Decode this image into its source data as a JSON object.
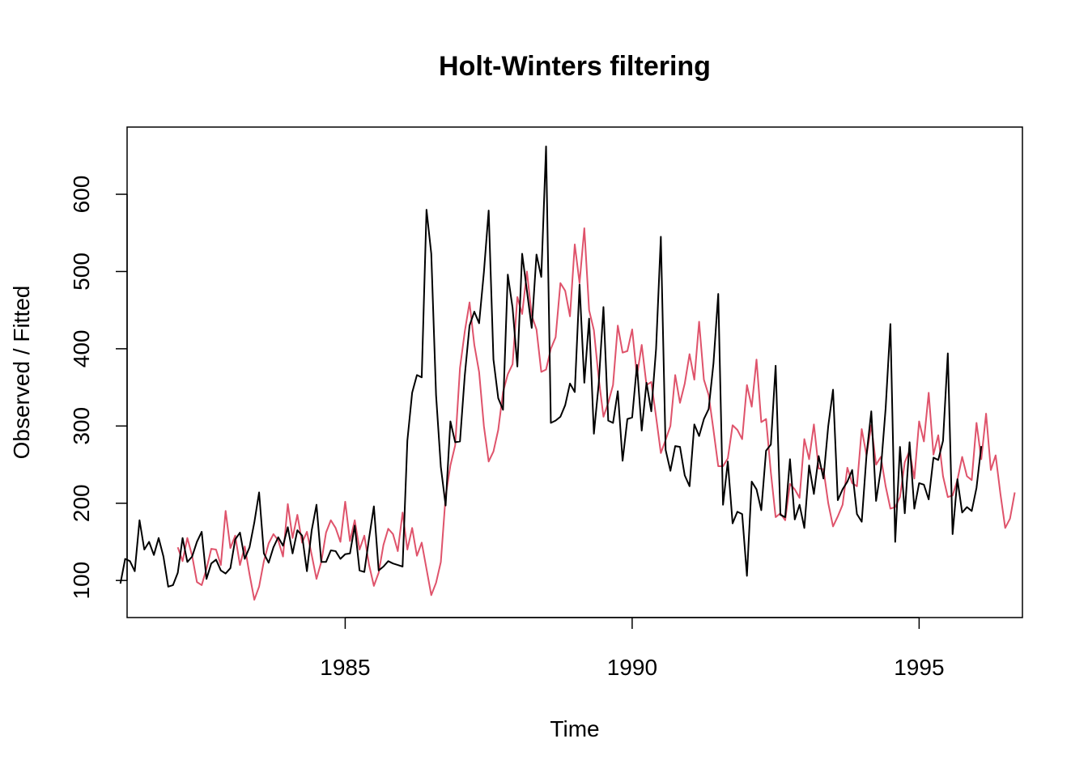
{
  "chart_data": {
    "type": "line",
    "title": "Holt-Winters filtering",
    "xlabel": "Time",
    "ylabel": "Observed / Fitted",
    "xlim": [
      1981.2,
      1996.8
    ],
    "ylim": [
      52,
      687
    ],
    "x_ticks": [
      1985,
      1990,
      1995
    ],
    "y_ticks": [
      100,
      200,
      300,
      400,
      500,
      600
    ],
    "grid": false,
    "legend": "none",
    "series": [
      {
        "color": "#000000",
        "start": 1981.0833,
        "frequency": 12,
        "values": [
          96,
          128,
          125,
          112,
          178,
          140,
          150,
          133,
          155,
          131,
          92,
          94,
          110,
          155,
          124,
          131,
          150,
          163,
          102,
          122,
          127,
          113,
          109,
          116,
          153,
          162,
          128,
          143,
          175,
          214,
          135,
          123,
          143,
          156,
          145,
          169,
          135,
          165,
          158,
          112,
          165,
          198,
          124,
          124,
          139,
          138,
          128,
          134,
          135,
          171,
          113,
          111,
          155,
          196,
          113,
          118,
          125,
          122,
          120,
          118,
          281,
          343,
          366,
          363,
          580,
          523,
          340,
          247,
          197,
          306,
          279,
          280,
          365,
          430,
          448,
          433,
          499,
          579,
          386,
          336,
          321,
          496,
          453,
          377,
          523,
          475,
          427,
          522,
          493,
          662,
          304,
          307,
          312,
          327,
          355,
          344,
          483,
          356,
          439,
          290,
          354,
          454,
          307,
          304,
          345,
          255,
          309,
          311,
          379,
          294,
          356,
          319,
          400,
          545,
          269,
          242,
          274,
          273,
          236,
          222,
          302,
          287,
          309,
          322,
          381,
          471,
          198,
          254,
          174,
          189,
          186,
          106,
          228,
          218,
          191,
          268,
          276,
          378,
          185,
          182,
          257,
          179,
          198,
          168,
          249,
          212,
          261,
          232,
          300,
          347,
          204,
          218,
          228,
          243,
          186,
          176,
          262,
          319,
          203,
          244,
          323,
          432,
          150,
          273,
          187,
          279,
          193,
          226,
          224,
          205,
          259,
          256,
          281,
          394,
          160,
          231,
          188,
          195,
          190,
          220,
          274
        ]
      },
      {
        "color": "#DF536B",
        "start": 1982.0833,
        "frequency": 12,
        "values": [
          143,
          125,
          155,
          132,
          98,
          94,
          115,
          141,
          140,
          120,
          190,
          142,
          158,
          120,
          144,
          108,
          75,
          92,
          125,
          148,
          160,
          152,
          131,
          199,
          155,
          185,
          149,
          163,
          133,
          102,
          124,
          162,
          178,
          168,
          150,
          202,
          151,
          178,
          140,
          158,
          120,
          93,
          110,
          146,
          167,
          160,
          138,
          188,
          140,
          168,
          132,
          149,
          115,
          81,
          97,
          124,
          209,
          249,
          275,
          375,
          422,
          460,
          405,
          370,
          300,
          254,
          267,
          295,
          344,
          367,
          380,
          467,
          445,
          500,
          443,
          425,
          370,
          373,
          400,
          415,
          485,
          475,
          442,
          535,
          485,
          556,
          450,
          424,
          362,
          312,
          330,
          353,
          430,
          395,
          397,
          425,
          365,
          405,
          353,
          357,
          312,
          265,
          282,
          300,
          366,
          330,
          355,
          393,
          360,
          435,
          360,
          340,
          295,
          248,
          248,
          258,
          301,
          295,
          283,
          353,
          325,
          386,
          305,
          309,
          240,
          182,
          187,
          178,
          225,
          218,
          207,
          283,
          257,
          302,
          245,
          244,
          200,
          170,
          183,
          198,
          246,
          226,
          222,
          296,
          262,
          301,
          250,
          260,
          222,
          193,
          195,
          208,
          253,
          268,
          232,
          306,
          280,
          343,
          263,
          288,
          235,
          208,
          210,
          230,
          260,
          235,
          230,
          304,
          257,
          316,
          243,
          262,
          212,
          168,
          180,
          214
        ]
      }
    ]
  }
}
